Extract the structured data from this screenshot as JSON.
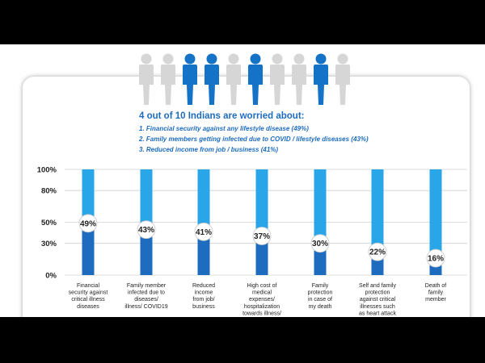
{
  "headline": "4 out of 10 Indians are worried about:",
  "points": [
    "1. Financial security against any lifestyle disease (49%)",
    "2. Family members getting infected due to COVID / lifestyle diseases (43%)",
    "3. Reduced income from job / business (41%)"
  ],
  "people": [
    {
      "highlighted": false
    },
    {
      "highlighted": false
    },
    {
      "highlighted": true
    },
    {
      "highlighted": true
    },
    {
      "highlighted": false
    },
    {
      "highlighted": true
    },
    {
      "highlighted": false
    },
    {
      "highlighted": false
    },
    {
      "highlighted": true
    },
    {
      "highlighted": false
    }
  ],
  "colors": {
    "accent": "#1d6cc0",
    "bar_track": "#29a6e8",
    "bar_fill": "#1d6cc0",
    "person_highlight": "#1473c6",
    "person_plain": "#d6d6d6"
  },
  "chart_data": {
    "type": "bar",
    "categories": [
      "Financial security against critical illness diseases",
      "Family member infected due to diseases/ illness/ COVID19",
      "Reduced income from job/ business",
      "High cost of medical expenses/ hospitalization towards illness/",
      "Family protection in case of my death",
      "Self and family protection against critical illnesses such as heart attack",
      "Death of family member"
    ],
    "category_lines": [
      [
        "Financial",
        "security against",
        "critical illness",
        "diseases"
      ],
      [
        "Family member",
        "infected due to",
        "diseases/",
        "illness/ COVID19"
      ],
      [
        "Reduced",
        "income",
        "from job/",
        "business"
      ],
      [
        "High cost of",
        "medical",
        "expenses/",
        "hospitalization",
        "towards illness/"
      ],
      [
        "Family",
        "protection",
        "in case of",
        "my death"
      ],
      [
        "Self and family",
        "protection",
        "against critical",
        "illnesses such",
        "as heart attack"
      ],
      [
        "Death of",
        "family",
        "member"
      ]
    ],
    "values": [
      49,
      43,
      41,
      37,
      30,
      22,
      16
    ],
    "value_labels": [
      "49%",
      "43%",
      "41%",
      "37%",
      "30%",
      "22%",
      "16%"
    ],
    "yticks": [
      "100%",
      "80%",
      "50%",
      "30%",
      "0%"
    ],
    "ytick_values": [
      100,
      80,
      50,
      30,
      0
    ],
    "ylim": [
      0,
      100
    ],
    "grid": true
  }
}
